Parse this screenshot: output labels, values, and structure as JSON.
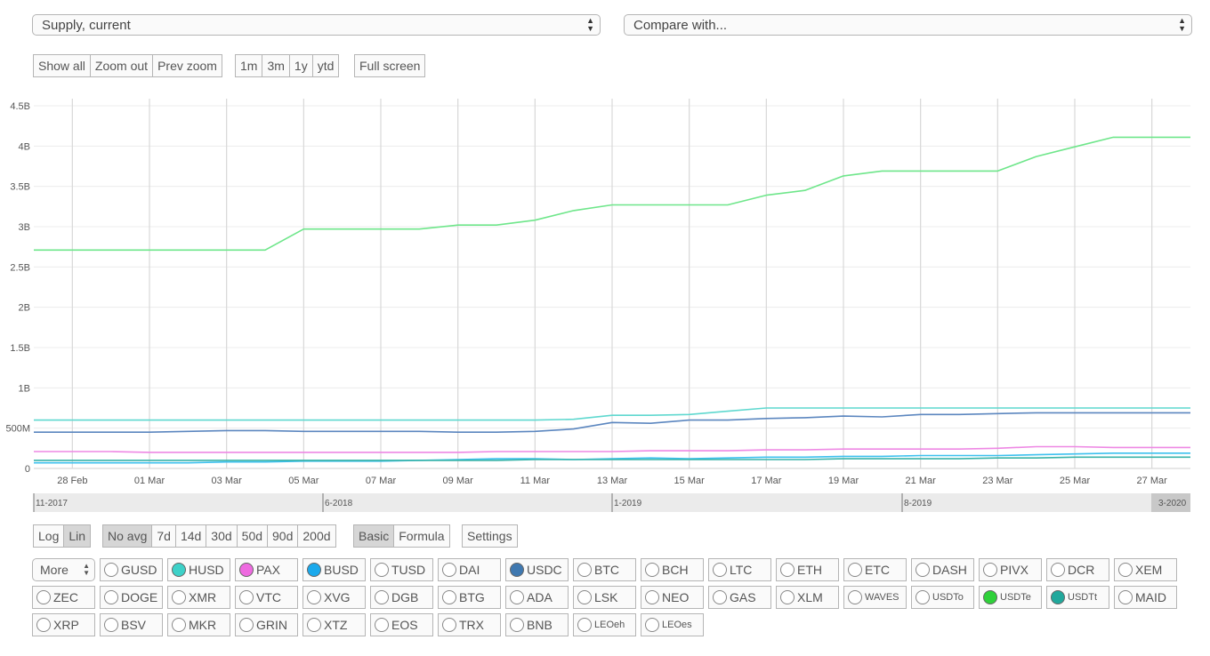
{
  "selects": {
    "metric": "Supply, current",
    "compare": "Compare with..."
  },
  "zoom_buttons": [
    "Show all",
    "Zoom out",
    "Prev zoom"
  ],
  "range_buttons": [
    "1m",
    "3m",
    "1y",
    "ytd"
  ],
  "fullscreen_label": "Full screen",
  "scale_buttons": [
    {
      "label": "Log",
      "active": false
    },
    {
      "label": "Lin",
      "active": true
    }
  ],
  "avg_buttons": [
    {
      "label": "No avg",
      "active": true
    },
    {
      "label": "7d",
      "active": false
    },
    {
      "label": "14d",
      "active": false
    },
    {
      "label": "30d",
      "active": false
    },
    {
      "label": "50d",
      "active": false
    },
    {
      "label": "90d",
      "active": false
    },
    {
      "label": "200d",
      "active": false
    }
  ],
  "mode_buttons": [
    {
      "label": "Basic",
      "active": true
    },
    {
      "label": "Formula",
      "active": false
    }
  ],
  "settings_label": "Settings",
  "more_label": "More",
  "coins": [
    [
      {
        "name": "GUSD",
        "color": null
      },
      {
        "name": "HUSD",
        "color": "#3dd1c8"
      },
      {
        "name": "PAX",
        "color": "#ee6ae0"
      },
      {
        "name": "BUSD",
        "color": "#1aa9ec"
      },
      {
        "name": "TUSD",
        "color": null
      },
      {
        "name": "DAI",
        "color": null
      },
      {
        "name": "USDC",
        "color": "#3f78b0"
      },
      {
        "name": "BTC",
        "color": null
      },
      {
        "name": "BCH",
        "color": null
      },
      {
        "name": "LTC",
        "color": null
      },
      {
        "name": "ETH",
        "color": null
      },
      {
        "name": "ETC",
        "color": null
      },
      {
        "name": "DASH",
        "color": null
      },
      {
        "name": "PIVX",
        "color": null
      },
      {
        "name": "DCR",
        "color": null
      },
      {
        "name": "XEM",
        "color": null
      }
    ],
    [
      {
        "name": "ZEC",
        "color": null
      },
      {
        "name": "DOGE",
        "color": null
      },
      {
        "name": "XMR",
        "color": null
      },
      {
        "name": "VTC",
        "color": null
      },
      {
        "name": "XVG",
        "color": null
      },
      {
        "name": "DGB",
        "color": null
      },
      {
        "name": "BTG",
        "color": null
      },
      {
        "name": "ADA",
        "color": null
      },
      {
        "name": "LSK",
        "color": null
      },
      {
        "name": "NEO",
        "color": null
      },
      {
        "name": "GAS",
        "color": null
      },
      {
        "name": "XLM",
        "color": null
      },
      {
        "name": "WAVES",
        "color": null,
        "small": true
      },
      {
        "name": "USDTo",
        "color": null,
        "small": true
      },
      {
        "name": "USDTe",
        "color": "#2fd13a",
        "small": true
      },
      {
        "name": "USDTt",
        "color": "#21a89c",
        "small": true
      },
      {
        "name": "MAID",
        "color": null
      }
    ],
    [
      {
        "name": "XRP",
        "color": null
      },
      {
        "name": "BSV",
        "color": null
      },
      {
        "name": "MKR",
        "color": null
      },
      {
        "name": "GRIN",
        "color": null
      },
      {
        "name": "XTZ",
        "color": null
      },
      {
        "name": "EOS",
        "color": null
      },
      {
        "name": "TRX",
        "color": null
      },
      {
        "name": "BNB",
        "color": null
      },
      {
        "name": "LEOeh",
        "color": null,
        "small": true
      },
      {
        "name": "LEOes",
        "color": null,
        "small": true
      }
    ]
  ],
  "chart_data": {
    "type": "line",
    "title": "",
    "xlabel": "",
    "ylabel": "",
    "ylim": [
      0,
      4.5
    ],
    "y_ticks": [
      {
        "v": 0,
        "label": "0"
      },
      {
        "v": 0.5,
        "label": "500M"
      },
      {
        "v": 1,
        "label": "1B"
      },
      {
        "v": 1.5,
        "label": "1.5B"
      },
      {
        "v": 2,
        "label": "2B"
      },
      {
        "v": 2.5,
        "label": "2.5B"
      },
      {
        "v": 3,
        "label": "3B"
      },
      {
        "v": 3.5,
        "label": "3.5B"
      },
      {
        "v": 4,
        "label": "4B"
      },
      {
        "v": 4.5,
        "label": "4.5B"
      }
    ],
    "x_ticks": [
      "28 Feb",
      "01 Mar",
      "03 Mar",
      "05 Mar",
      "07 Mar",
      "09 Mar",
      "11 Mar",
      "13 Mar",
      "15 Mar",
      "17 Mar",
      "19 Mar",
      "21 Mar",
      "23 Mar",
      "25 Mar",
      "27 Mar"
    ],
    "x": [
      "27 Feb",
      "28 Feb",
      "29 Feb",
      "01 Mar",
      "02 Mar",
      "03 Mar",
      "04 Mar",
      "05 Mar",
      "06 Mar",
      "07 Mar",
      "08 Mar",
      "09 Mar",
      "10 Mar",
      "11 Mar",
      "12 Mar",
      "13 Mar",
      "14 Mar",
      "15 Mar",
      "16 Mar",
      "17 Mar",
      "18 Mar",
      "19 Mar",
      "20 Mar",
      "21 Mar",
      "22 Mar",
      "23 Mar",
      "24 Mar",
      "25 Mar",
      "26 Mar",
      "27 Mar",
      "28 Mar"
    ],
    "y_unit": "B",
    "series": [
      {
        "color": "#6ee68a",
        "values": [
          2.71,
          2.71,
          2.71,
          2.71,
          2.71,
          2.71,
          2.71,
          2.97,
          2.97,
          2.97,
          2.97,
          3.02,
          3.02,
          3.08,
          3.2,
          3.27,
          3.27,
          3.27,
          3.27,
          3.39,
          3.45,
          3.63,
          3.69,
          3.69,
          3.69,
          3.69,
          3.87,
          3.99,
          4.11,
          4.11,
          4.11
        ]
      },
      {
        "color": "#5fd8cf",
        "values": [
          0.6,
          0.6,
          0.6,
          0.6,
          0.6,
          0.6,
          0.6,
          0.6,
          0.6,
          0.6,
          0.6,
          0.6,
          0.6,
          0.6,
          0.61,
          0.66,
          0.66,
          0.67,
          0.71,
          0.75,
          0.75,
          0.75,
          0.75,
          0.75,
          0.75,
          0.75,
          0.75,
          0.75,
          0.75,
          0.75,
          0.75
        ]
      },
      {
        "color": "#5b86bf",
        "values": [
          0.45,
          0.45,
          0.45,
          0.45,
          0.46,
          0.47,
          0.47,
          0.46,
          0.46,
          0.46,
          0.46,
          0.45,
          0.45,
          0.46,
          0.49,
          0.57,
          0.56,
          0.6,
          0.6,
          0.62,
          0.63,
          0.65,
          0.64,
          0.67,
          0.67,
          0.68,
          0.69,
          0.69,
          0.69,
          0.69,
          0.69
        ]
      },
      {
        "color": "#ee88e4",
        "values": [
          0.21,
          0.21,
          0.21,
          0.2,
          0.2,
          0.2,
          0.2,
          0.2,
          0.2,
          0.2,
          0.2,
          0.2,
          0.21,
          0.21,
          0.21,
          0.21,
          0.22,
          0.22,
          0.22,
          0.23,
          0.23,
          0.24,
          0.24,
          0.24,
          0.24,
          0.25,
          0.27,
          0.27,
          0.26,
          0.26,
          0.26
        ]
      },
      {
        "color": "#3cc0ee",
        "values": [
          0.07,
          0.07,
          0.07,
          0.07,
          0.07,
          0.08,
          0.08,
          0.09,
          0.09,
          0.09,
          0.1,
          0.11,
          0.12,
          0.12,
          0.11,
          0.12,
          0.13,
          0.12,
          0.13,
          0.14,
          0.14,
          0.15,
          0.15,
          0.16,
          0.16,
          0.16,
          0.17,
          0.18,
          0.19,
          0.19,
          0.19
        ]
      },
      {
        "color": "#38b3a8",
        "values": [
          0.1,
          0.1,
          0.1,
          0.1,
          0.1,
          0.1,
          0.1,
          0.1,
          0.1,
          0.1,
          0.1,
          0.1,
          0.1,
          0.11,
          0.11,
          0.11,
          0.11,
          0.11,
          0.11,
          0.11,
          0.11,
          0.12,
          0.12,
          0.12,
          0.12,
          0.13,
          0.13,
          0.14,
          0.14,
          0.14,
          0.14
        ]
      }
    ],
    "navigator_labels": [
      "11-2017",
      "6-2018",
      "1-2019",
      "8-2019",
      "3-2020"
    ],
    "grid": true,
    "legend": "none"
  }
}
